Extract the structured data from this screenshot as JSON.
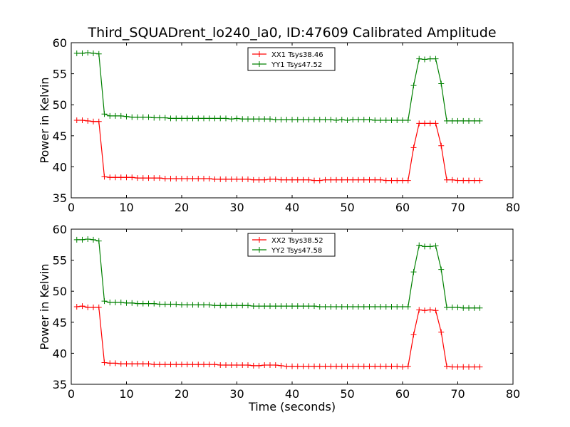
{
  "figure_title": "Third_SQUADrent_lo240_la0, ID:47609 Calibrated Amplitude",
  "chart_data": [
    {
      "type": "line",
      "title": "Third_SQUADrent_lo240_la0, ID:47609 Calibrated Amplitude",
      "xlabel": "",
      "ylabel": "Power in Kelvin",
      "xlim": [
        0,
        80
      ],
      "ylim": [
        35,
        60
      ],
      "xticks": [
        0,
        10,
        20,
        30,
        40,
        50,
        60,
        70,
        80
      ],
      "yticks": [
        35,
        40,
        45,
        50,
        55,
        60
      ],
      "grid": false,
      "legend_position": "top-center",
      "marker": "+",
      "series": [
        {
          "name": "XX1 Tsys38.46",
          "color": "#ff0000",
          "x": [
            1,
            2,
            3,
            4,
            5,
            6,
            7,
            8,
            9,
            10,
            11,
            12,
            13,
            14,
            15,
            16,
            17,
            18,
            19,
            20,
            21,
            22,
            23,
            24,
            25,
            26,
            27,
            28,
            29,
            30,
            31,
            32,
            33,
            34,
            35,
            36,
            37,
            38,
            39,
            40,
            41,
            42,
            43,
            44,
            45,
            46,
            47,
            48,
            49,
            50,
            51,
            52,
            53,
            54,
            55,
            56,
            57,
            58,
            59,
            60,
            61,
            62,
            63,
            64,
            65,
            66,
            67,
            68,
            69,
            70,
            71,
            72,
            73,
            74
          ],
          "y": [
            47.5,
            47.5,
            47.4,
            47.3,
            47.3,
            38.4,
            38.3,
            38.3,
            38.3,
            38.3,
            38.3,
            38.2,
            38.2,
            38.2,
            38.2,
            38.2,
            38.1,
            38.1,
            38.1,
            38.1,
            38.1,
            38.1,
            38.1,
            38.1,
            38.1,
            38.0,
            38.0,
            38.0,
            38.0,
            38.0,
            38.0,
            38.0,
            37.9,
            37.9,
            37.9,
            38.0,
            38.0,
            37.9,
            37.9,
            37.9,
            37.9,
            37.9,
            37.9,
            37.8,
            37.8,
            37.9,
            37.9,
            37.9,
            37.9,
            37.9,
            37.9,
            37.9,
            37.9,
            37.9,
            37.9,
            37.9,
            37.8,
            37.8,
            37.8,
            37.8,
            37.8,
            43.1,
            47.0,
            47.0,
            47.0,
            47.0,
            43.4,
            37.9,
            37.9,
            37.8,
            37.8,
            37.8,
            37.8,
            37.8
          ]
        },
        {
          "name": "YY1 Tsys47.52",
          "color": "#008000",
          "x": [
            1,
            2,
            3,
            4,
            5,
            6,
            7,
            8,
            9,
            10,
            11,
            12,
            13,
            14,
            15,
            16,
            17,
            18,
            19,
            20,
            21,
            22,
            23,
            24,
            25,
            26,
            27,
            28,
            29,
            30,
            31,
            32,
            33,
            34,
            35,
            36,
            37,
            38,
            39,
            40,
            41,
            42,
            43,
            44,
            45,
            46,
            47,
            48,
            49,
            50,
            51,
            52,
            53,
            54,
            55,
            56,
            57,
            58,
            59,
            60,
            61,
            62,
            63,
            64,
            65,
            66,
            67,
            68,
            69,
            70,
            71,
            72,
            73,
            74
          ],
          "y": [
            58.3,
            58.3,
            58.4,
            58.3,
            58.2,
            48.5,
            48.2,
            48.2,
            48.2,
            48.1,
            48.0,
            48.0,
            48.0,
            48.0,
            47.9,
            47.9,
            47.9,
            47.8,
            47.8,
            47.8,
            47.8,
            47.8,
            47.8,
            47.8,
            47.8,
            47.8,
            47.8,
            47.8,
            47.7,
            47.8,
            47.7,
            47.7,
            47.7,
            47.7,
            47.7,
            47.7,
            47.6,
            47.6,
            47.6,
            47.6,
            47.6,
            47.6,
            47.6,
            47.6,
            47.6,
            47.6,
            47.6,
            47.5,
            47.6,
            47.5,
            47.6,
            47.6,
            47.6,
            47.6,
            47.5,
            47.5,
            47.5,
            47.5,
            47.5,
            47.5,
            47.5,
            53.1,
            57.4,
            57.3,
            57.4,
            57.4,
            53.4,
            47.4,
            47.4,
            47.4,
            47.4,
            47.4,
            47.4,
            47.4
          ]
        }
      ]
    },
    {
      "type": "line",
      "title": "",
      "xlabel": "Time (seconds)",
      "ylabel": "Power in Kelvin",
      "xlim": [
        0,
        80
      ],
      "ylim": [
        35,
        60
      ],
      "xticks": [
        0,
        10,
        20,
        30,
        40,
        50,
        60,
        70,
        80
      ],
      "yticks": [
        35,
        40,
        45,
        50,
        55,
        60
      ],
      "grid": false,
      "legend_position": "top-center",
      "marker": "+",
      "series": [
        {
          "name": "XX2 Tsys38.52",
          "color": "#ff0000",
          "x": [
            1,
            2,
            3,
            4,
            5,
            6,
            7,
            8,
            9,
            10,
            11,
            12,
            13,
            14,
            15,
            16,
            17,
            18,
            19,
            20,
            21,
            22,
            23,
            24,
            25,
            26,
            27,
            28,
            29,
            30,
            31,
            32,
            33,
            34,
            35,
            36,
            37,
            38,
            39,
            40,
            41,
            42,
            43,
            44,
            45,
            46,
            47,
            48,
            49,
            50,
            51,
            52,
            53,
            54,
            55,
            56,
            57,
            58,
            59,
            60,
            61,
            62,
            63,
            64,
            65,
            66,
            67,
            68,
            69,
            70,
            71,
            72,
            73,
            74
          ],
          "y": [
            47.5,
            47.6,
            47.4,
            47.4,
            47.4,
            38.5,
            38.4,
            38.4,
            38.3,
            38.3,
            38.3,
            38.3,
            38.3,
            38.3,
            38.2,
            38.2,
            38.2,
            38.2,
            38.2,
            38.2,
            38.2,
            38.2,
            38.2,
            38.2,
            38.2,
            38.2,
            38.1,
            38.1,
            38.1,
            38.1,
            38.1,
            38.1,
            38.0,
            38.0,
            38.1,
            38.1,
            38.1,
            38.0,
            37.9,
            37.9,
            37.9,
            37.9,
            37.9,
            37.9,
            37.9,
            37.9,
            37.9,
            37.9,
            37.9,
            37.9,
            37.9,
            37.9,
            37.9,
            37.9,
            37.9,
            37.9,
            37.9,
            37.9,
            37.9,
            37.8,
            37.9,
            43.0,
            47.0,
            46.9,
            47.0,
            46.9,
            43.4,
            37.9,
            37.8,
            37.8,
            37.8,
            37.8,
            37.8,
            37.8
          ]
        },
        {
          "name": "YY2 Tsys47.58",
          "color": "#008000",
          "x": [
            1,
            2,
            3,
            4,
            5,
            6,
            7,
            8,
            9,
            10,
            11,
            12,
            13,
            14,
            15,
            16,
            17,
            18,
            19,
            20,
            21,
            22,
            23,
            24,
            25,
            26,
            27,
            28,
            29,
            30,
            31,
            32,
            33,
            34,
            35,
            36,
            37,
            38,
            39,
            40,
            41,
            42,
            43,
            44,
            45,
            46,
            47,
            48,
            49,
            50,
            51,
            52,
            53,
            54,
            55,
            56,
            57,
            58,
            59,
            60,
            61,
            62,
            63,
            64,
            65,
            66,
            67,
            68,
            69,
            70,
            71,
            72,
            73,
            74
          ],
          "y": [
            58.3,
            58.3,
            58.4,
            58.3,
            58.1,
            48.4,
            48.2,
            48.2,
            48.2,
            48.1,
            48.1,
            48.0,
            48.0,
            48.0,
            48.0,
            47.9,
            47.9,
            47.9,
            47.9,
            47.8,
            47.8,
            47.8,
            47.8,
            47.8,
            47.8,
            47.7,
            47.7,
            47.7,
            47.7,
            47.7,
            47.7,
            47.7,
            47.6,
            47.6,
            47.6,
            47.6,
            47.6,
            47.6,
            47.6,
            47.6,
            47.6,
            47.6,
            47.6,
            47.6,
            47.5,
            47.5,
            47.5,
            47.5,
            47.5,
            47.5,
            47.5,
            47.5,
            47.5,
            47.5,
            47.5,
            47.5,
            47.5,
            47.5,
            47.5,
            47.5,
            47.5,
            53.1,
            57.4,
            57.2,
            57.2,
            57.3,
            53.5,
            47.4,
            47.4,
            47.4,
            47.3,
            47.3,
            47.3,
            47.3
          ]
        }
      ]
    }
  ]
}
